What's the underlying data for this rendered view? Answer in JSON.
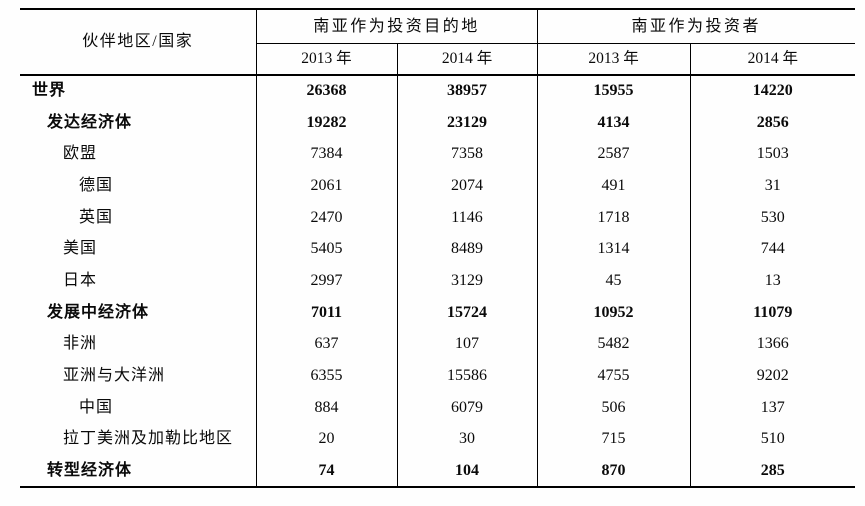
{
  "table": {
    "header": {
      "partner_label": "伙伴地区/国家",
      "groups": [
        {
          "label": "南亚作为投资目的地",
          "years": [
            "2013 年",
            "2014 年"
          ]
        },
        {
          "label": "南亚作为投资者",
          "years": [
            "2013 年",
            "2014 年"
          ]
        }
      ]
    },
    "rows": [
      {
        "label": "世界",
        "indent": 0,
        "bold": true,
        "values": [
          "26368",
          "38957",
          "15955",
          "14220"
        ]
      },
      {
        "label": "发达经济体",
        "indent": 1,
        "bold": true,
        "values": [
          "19282",
          "23129",
          "4134",
          "2856"
        ]
      },
      {
        "label": "欧盟",
        "indent": 2,
        "bold": false,
        "values": [
          "7384",
          "7358",
          "2587",
          "1503"
        ]
      },
      {
        "label": "德国",
        "indent": 3,
        "bold": false,
        "values": [
          "2061",
          "2074",
          "491",
          "31"
        ]
      },
      {
        "label": "英国",
        "indent": 3,
        "bold": false,
        "values": [
          "2470",
          "1146",
          "1718",
          "530"
        ]
      },
      {
        "label": "美国",
        "indent": 2,
        "bold": false,
        "values": [
          "5405",
          "8489",
          "1314",
          "744"
        ]
      },
      {
        "label": "日本",
        "indent": 2,
        "bold": false,
        "values": [
          "2997",
          "3129",
          "45",
          "13"
        ]
      },
      {
        "label": "发展中经济体",
        "indent": 1,
        "bold": true,
        "values": [
          "7011",
          "15724",
          "10952",
          "11079"
        ]
      },
      {
        "label": "非洲",
        "indent": 2,
        "bold": false,
        "values": [
          "637",
          "107",
          "5482",
          "1366"
        ]
      },
      {
        "label": "亚洲与大洋洲",
        "indent": 2,
        "bold": false,
        "values": [
          "6355",
          "15586",
          "4755",
          "9202"
        ]
      },
      {
        "label": "中国",
        "indent": 3,
        "bold": false,
        "values": [
          "884",
          "6079",
          "506",
          "137"
        ]
      },
      {
        "label": "拉丁美洲及加勒比地区",
        "indent": 2,
        "bold": false,
        "values": [
          "20",
          "30",
          "715",
          "510"
        ]
      },
      {
        "label": "转型经济体",
        "indent": 1,
        "bold": true,
        "values": [
          "74",
          "104",
          "870",
          "285"
        ]
      }
    ]
  },
  "colors": {
    "border": "#000000",
    "text": "#0a0a0a",
    "background": "#fefefe"
  }
}
